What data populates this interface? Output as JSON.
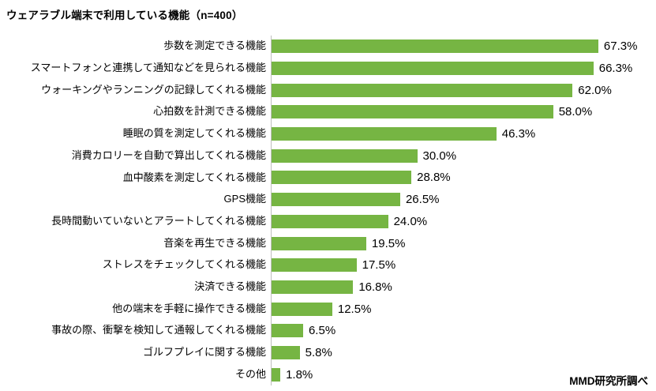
{
  "title": "ウェアラブル端末で利用している機能（n=400）",
  "source": "MMD研究所調べ",
  "colors": {
    "bar": "#76B543",
    "axis": "#BFBFBF",
    "text": "#000000"
  },
  "chart_data": {
    "type": "bar",
    "orientation": "horizontal",
    "title": "ウェアラブル端末で利用している機能（n=400）",
    "sample_size": "n=400",
    "categories": [
      "歩数を測定できる機能",
      "スマートフォンと連携して通知などを見られる機能",
      "ウォーキングやランニングの記録してくれる機能",
      "心拍数を計測できる機能",
      "睡眠の質を測定してくれる機能",
      "消費カロリーを自動で算出してくれる機能",
      "血中酸素を測定してくれる機能",
      "GPS機能",
      "長時間動いていないとアラートしてくれる機能",
      "音楽を再生できる機能",
      "ストレスをチェックしてくれる機能",
      "決済できる機能",
      "他の端末を手軽に操作できる機能",
      "事故の際、衝撃を検知して通報してくれる機能",
      "ゴルフプレイに関する機能",
      "その他"
    ],
    "values": [
      67.3,
      66.3,
      62.0,
      58.0,
      46.3,
      30.0,
      28.8,
      26.5,
      24.0,
      19.5,
      17.5,
      16.8,
      12.5,
      6.5,
      5.8,
      1.8
    ],
    "value_labels": [
      "67.3%",
      "66.3%",
      "62.0%",
      "58.0%",
      "46.3%",
      "30.0%",
      "28.8%",
      "26.5%",
      "24.0%",
      "19.5%",
      "17.5%",
      "16.8%",
      "12.5%",
      "6.5%",
      "5.8%",
      "1.8%"
    ],
    "xlabel": "",
    "ylabel": "",
    "xlim": [
      0,
      70
    ],
    "grid": false,
    "legend": false,
    "data_labels_position": "outside-end",
    "source": "MMD研究所調べ"
  }
}
